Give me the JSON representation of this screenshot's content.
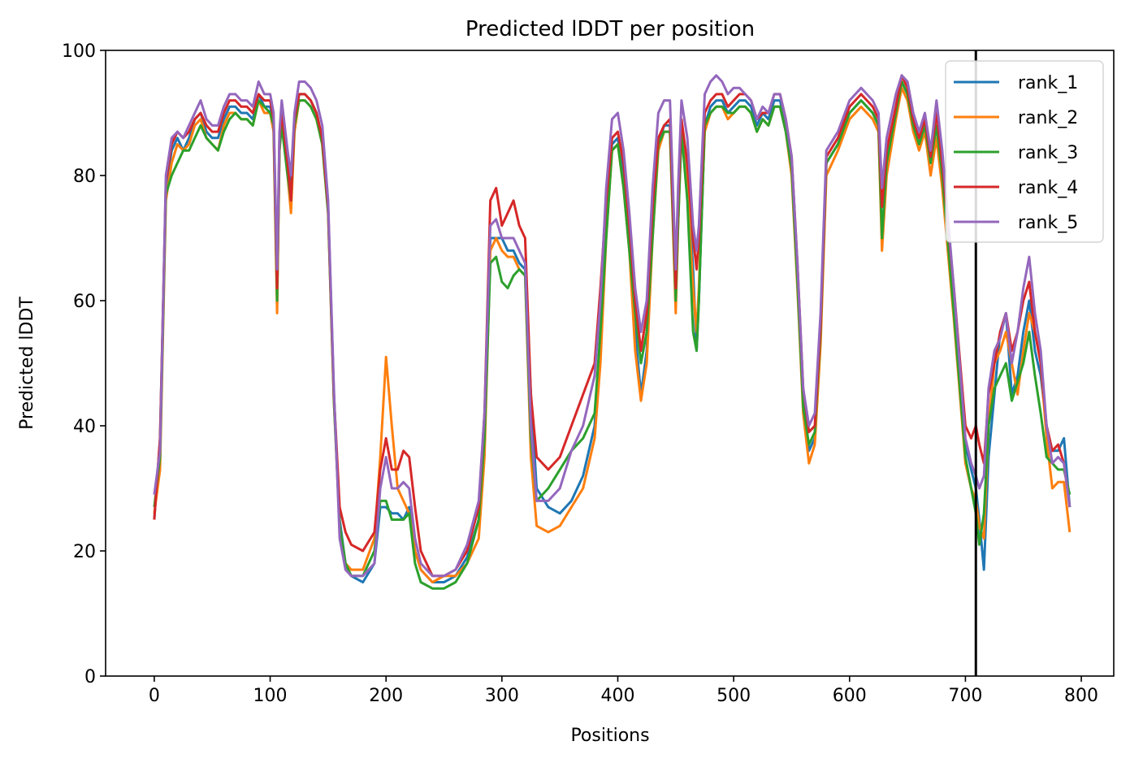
{
  "chart_data": {
    "type": "line",
    "title": "Predicted lDDT per position",
    "xlabel": "Positions",
    "ylabel": "Predicted lDDT",
    "xlim": [
      -42,
      828
    ],
    "ylim": [
      0,
      100
    ],
    "x_ticks": [
      0,
      100,
      200,
      300,
      400,
      500,
      600,
      700,
      800
    ],
    "y_ticks": [
      0,
      20,
      40,
      60,
      80,
      100
    ],
    "grid": false,
    "legend_position": "top-right",
    "vline": {
      "x": 709,
      "color": "#000000"
    },
    "anchor_x": [
      0,
      5,
      10,
      15,
      20,
      25,
      30,
      35,
      40,
      45,
      50,
      55,
      60,
      65,
      70,
      75,
      80,
      85,
      90,
      95,
      100,
      103,
      106,
      108,
      110,
      115,
      118,
      121,
      125,
      130,
      135,
      140,
      145,
      150,
      155,
      160,
      165,
      170,
      180,
      190,
      195,
      200,
      205,
      210,
      215,
      220,
      225,
      230,
      240,
      250,
      260,
      270,
      280,
      285,
      290,
      295,
      300,
      305,
      310,
      315,
      320,
      325,
      330,
      340,
      350,
      360,
      370,
      380,
      385,
      390,
      395,
      400,
      405,
      410,
      415,
      420,
      425,
      430,
      435,
      440,
      445,
      450,
      452,
      455,
      460,
      465,
      468,
      470,
      475,
      480,
      485,
      490,
      495,
      500,
      505,
      510,
      515,
      520,
      525,
      530,
      535,
      540,
      545,
      550,
      555,
      560,
      565,
      570,
      575,
      580,
      590,
      600,
      610,
      620,
      625,
      628,
      632,
      640,
      645,
      650,
      655,
      660,
      665,
      670,
      675,
      680,
      690,
      700,
      705,
      709,
      712,
      716,
      720,
      725,
      730,
      735,
      740,
      745,
      750,
      755,
      760,
      765,
      770,
      775,
      780,
      785,
      790
    ],
    "series": [
      {
        "name": "rank_1",
        "color": "#1f77b4",
        "values": [
          25,
          38,
          78,
          84,
          86,
          84,
          86,
          89,
          90,
          87,
          86,
          86,
          89,
          91,
          91,
          90,
          90,
          89,
          93,
          91,
          91,
          88,
          60,
          85,
          90,
          82,
          78,
          88,
          93,
          93,
          92,
          90,
          86,
          75,
          45,
          25,
          18,
          16,
          15,
          18,
          27,
          27,
          26,
          26,
          25,
          27,
          20,
          17,
          15,
          15,
          16,
          19,
          25,
          40,
          70,
          70,
          70,
          68,
          68,
          66,
          65,
          45,
          30,
          27,
          26,
          28,
          32,
          40,
          55,
          72,
          85,
          86,
          80,
          70,
          55,
          45,
          52,
          72,
          85,
          88,
          88,
          60,
          75,
          88,
          80,
          65,
          52,
          60,
          88,
          91,
          92,
          92,
          90,
          91,
          92,
          92,
          91,
          88,
          90,
          89,
          92,
          92,
          88,
          82,
          65,
          45,
          36,
          38,
          55,
          82,
          85,
          90,
          92,
          90,
          88,
          70,
          82,
          90,
          95,
          93,
          88,
          85,
          88,
          82,
          88,
          80,
          60,
          37,
          33,
          30,
          25,
          17,
          35,
          45,
          55,
          58,
          45,
          48,
          55,
          60,
          52,
          48,
          40,
          36,
          36,
          38,
          27
        ]
      },
      {
        "name": "rank_2",
        "color": "#ff7f0e",
        "values": [
          26,
          33,
          76,
          82,
          85,
          84,
          85,
          88,
          89,
          86,
          85,
          84,
          88,
          90,
          90,
          89,
          89,
          88,
          92,
          90,
          90,
          87,
          58,
          84,
          89,
          80,
          74,
          87,
          92,
          92,
          91,
          89,
          85,
          74,
          44,
          24,
          18,
          17,
          17,
          22,
          35,
          51,
          40,
          30,
          28,
          26,
          20,
          17,
          15,
          16,
          16,
          18,
          22,
          35,
          68,
          70,
          68,
          67,
          67,
          65,
          64,
          35,
          24,
          23,
          24,
          27,
          30,
          38,
          50,
          70,
          84,
          85,
          78,
          68,
          52,
          44,
          50,
          70,
          84,
          87,
          87,
          58,
          72,
          87,
          78,
          62,
          55,
          62,
          87,
          90,
          91,
          91,
          89,
          90,
          91,
          91,
          90,
          87,
          89,
          88,
          91,
          91,
          87,
          80,
          62,
          42,
          34,
          37,
          53,
          80,
          84,
          89,
          91,
          89,
          87,
          68,
          80,
          89,
          94,
          92,
          87,
          84,
          87,
          80,
          86,
          78,
          57,
          34,
          30,
          28,
          24,
          22,
          40,
          50,
          52,
          55,
          50,
          45,
          52,
          58,
          55,
          50,
          38,
          30,
          31,
          31,
          23
        ]
      },
      {
        "name": "rank_3",
        "color": "#2ca02c",
        "values": [
          27,
          35,
          77,
          80,
          82,
          84,
          84,
          86,
          88,
          86,
          85,
          84,
          87,
          89,
          90,
          89,
          89,
          88,
          92,
          91,
          90,
          88,
          60,
          84,
          88,
          80,
          76,
          88,
          92,
          92,
          91,
          89,
          85,
          74,
          44,
          24,
          18,
          16,
          16,
          20,
          28,
          28,
          25,
          25,
          25,
          26,
          18,
          15,
          14,
          14,
          15,
          18,
          25,
          38,
          66,
          67,
          63,
          62,
          64,
          65,
          64,
          38,
          28,
          30,
          33,
          36,
          38,
          42,
          55,
          70,
          84,
          85,
          78,
          68,
          58,
          50,
          55,
          70,
          85,
          87,
          87,
          60,
          72,
          87,
          76,
          55,
          52,
          60,
          88,
          90,
          91,
          91,
          90,
          90,
          91,
          91,
          90,
          87,
          89,
          88,
          91,
          91,
          87,
          81,
          63,
          43,
          37,
          39,
          55,
          82,
          85,
          90,
          92,
          90,
          88,
          70,
          82,
          90,
          95,
          93,
          88,
          85,
          88,
          82,
          88,
          80,
          58,
          35,
          30,
          26,
          21,
          26,
          40,
          46,
          48,
          50,
          44,
          47,
          50,
          55,
          48,
          42,
          35,
          34,
          33,
          33,
          29
        ]
      },
      {
        "name": "rank_4",
        "color": "#d62728",
        "values": [
          25,
          38,
          79,
          85,
          87,
          86,
          87,
          89,
          90,
          88,
          87,
          87,
          90,
          92,
          92,
          91,
          91,
          90,
          93,
          92,
          92,
          89,
          62,
          86,
          90,
          82,
          76,
          89,
          93,
          93,
          92,
          90,
          86,
          75,
          45,
          27,
          23,
          21,
          20,
          23,
          33,
          38,
          33,
          33,
          36,
          35,
          27,
          20,
          16,
          16,
          17,
          20,
          27,
          42,
          76,
          78,
          72,
          74,
          76,
          72,
          70,
          45,
          35,
          33,
          35,
          40,
          45,
          50,
          62,
          76,
          86,
          87,
          82,
          72,
          60,
          52,
          58,
          75,
          86,
          88,
          89,
          62,
          76,
          89,
          82,
          70,
          65,
          70,
          90,
          92,
          93,
          93,
          91,
          92,
          93,
          93,
          92,
          89,
          90,
          90,
          93,
          93,
          89,
          83,
          66,
          46,
          39,
          40,
          56,
          83,
          86,
          91,
          93,
          91,
          89,
          75,
          84,
          91,
          96,
          94,
          89,
          86,
          89,
          83,
          90,
          82,
          62,
          40,
          38,
          40,
          37,
          34,
          45,
          50,
          55,
          58,
          52,
          55,
          60,
          63,
          55,
          50,
          40,
          36,
          37,
          34,
          27
        ]
      },
      {
        "name": "rank_5",
        "color": "#9467bd",
        "values": [
          29,
          36,
          80,
          86,
          87,
          86,
          88,
          90,
          92,
          89,
          88,
          88,
          91,
          93,
          93,
          92,
          92,
          91,
          95,
          93,
          93,
          90,
          65,
          87,
          92,
          84,
          80,
          90,
          95,
          95,
          94,
          92,
          88,
          76,
          46,
          22,
          17,
          16,
          16,
          18,
          30,
          35,
          30,
          30,
          31,
          30,
          22,
          18,
          16,
          16,
          17,
          21,
          28,
          42,
          72,
          73,
          70,
          70,
          70,
          68,
          66,
          40,
          28,
          28,
          30,
          36,
          40,
          48,
          60,
          78,
          89,
          90,
          84,
          74,
          62,
          55,
          60,
          78,
          90,
          92,
          92,
          65,
          78,
          92,
          86,
          72,
          68,
          72,
          93,
          95,
          96,
          95,
          93,
          94,
          94,
          93,
          92,
          89,
          91,
          90,
          93,
          93,
          89,
          83,
          66,
          46,
          40,
          42,
          58,
          84,
          87,
          92,
          94,
          92,
          90,
          78,
          86,
          93,
          96,
          95,
          90,
          87,
          90,
          84,
          92,
          84,
          62,
          38,
          34,
          32,
          30,
          32,
          46,
          52,
          54,
          58,
          50,
          55,
          62,
          67,
          58,
          52,
          40,
          34,
          35,
          34,
          27
        ]
      }
    ]
  }
}
